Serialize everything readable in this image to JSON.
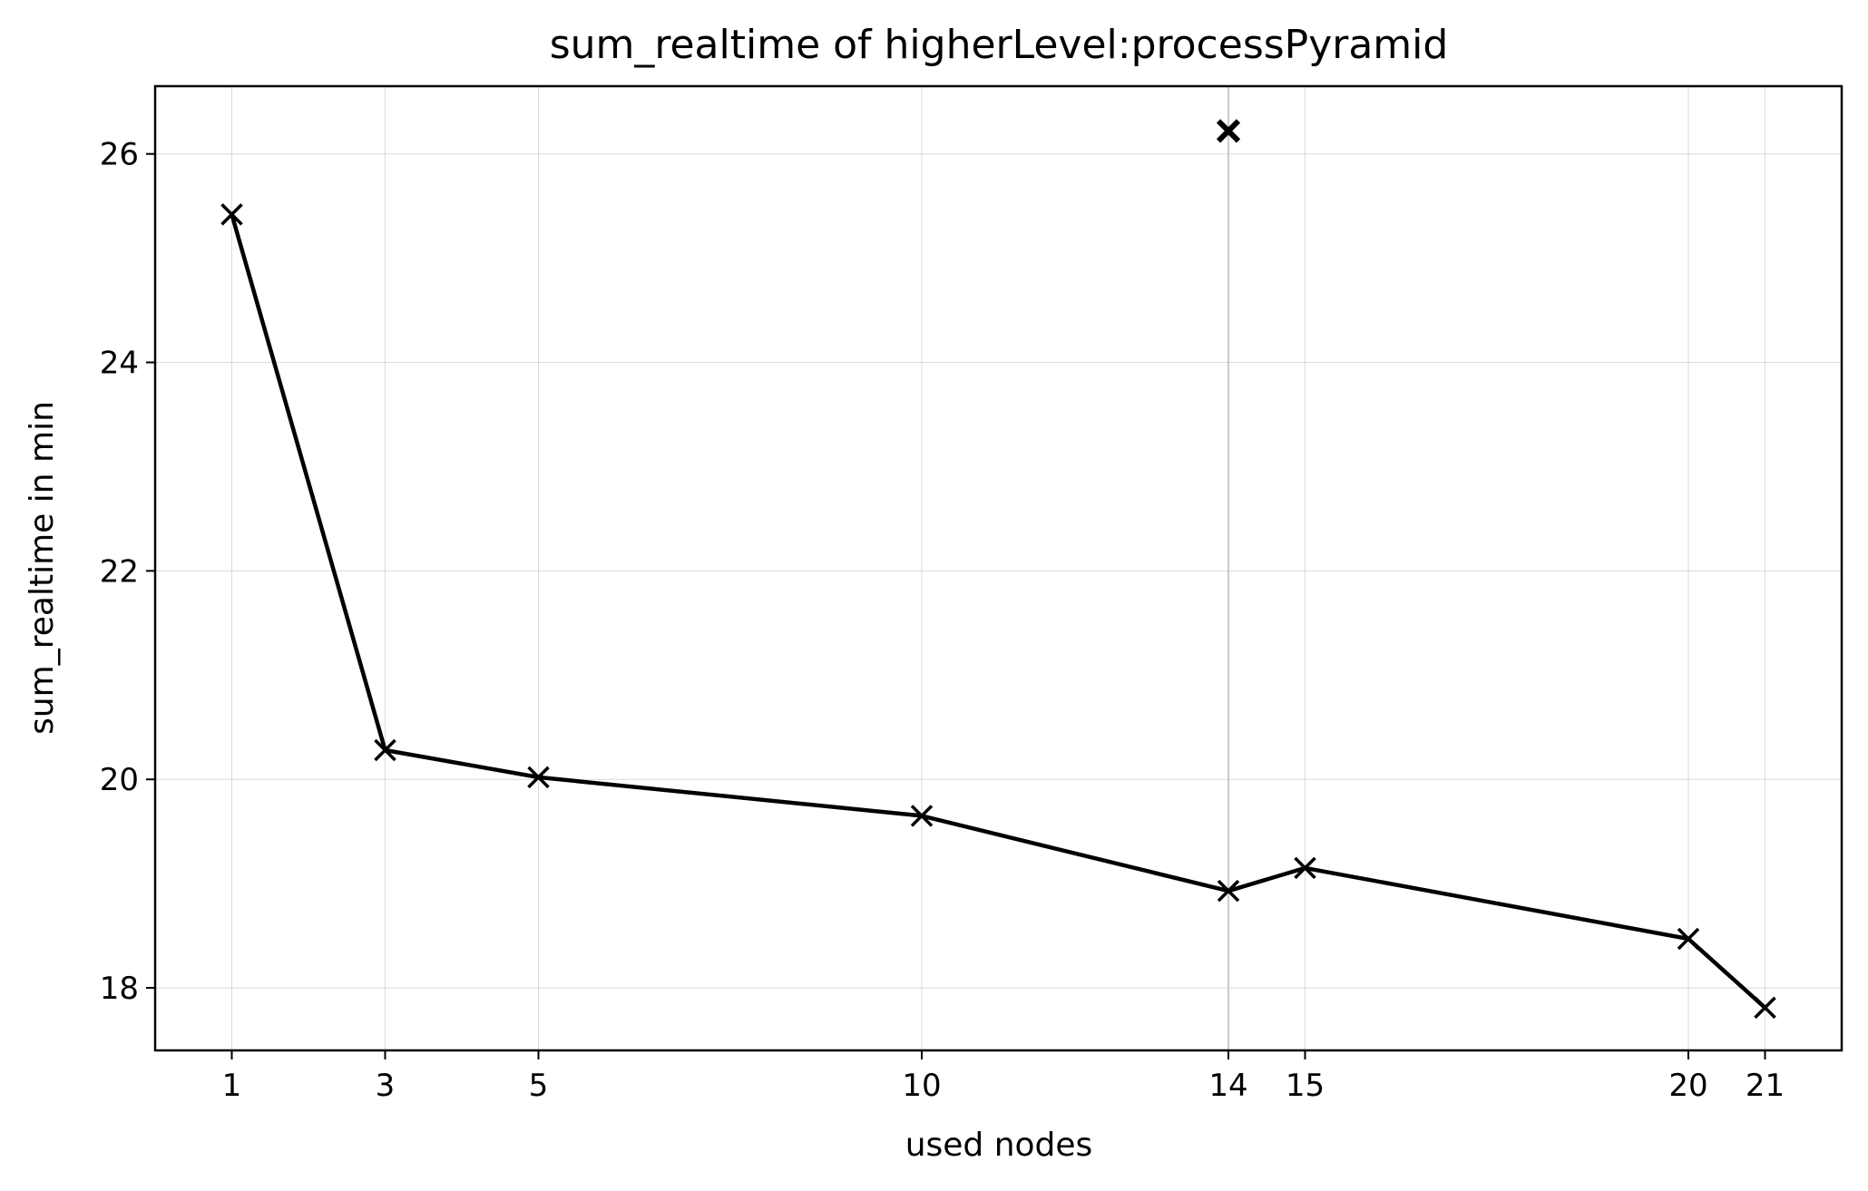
{
  "chart_data": {
    "type": "line",
    "title": "sum_realtime of higherLevel:processPyramid",
    "xlabel": "used nodes",
    "ylabel": "sum_realtime in min",
    "xlim": [
      0.0,
      22.0
    ],
    "ylim": [
      17.4,
      26.65
    ],
    "x_ticks": [
      1,
      3,
      5,
      10,
      14,
      15,
      20,
      21
    ],
    "x_tick_labels": [
      "1",
      "3",
      "5",
      "10",
      "14",
      "15",
      "20",
      "21"
    ],
    "y_ticks": [
      18,
      20,
      22,
      24,
      26
    ],
    "y_tick_labels": [
      "18",
      "20",
      "22",
      "24",
      "26"
    ],
    "grid": true,
    "highlight_vline_x": 14,
    "series": [
      {
        "marker": "x",
        "line_style": "solid",
        "color": "#000000",
        "x": [
          1,
          3,
          5,
          10,
          14,
          15,
          20,
          21
        ],
        "y": [
          25.42,
          20.28,
          20.02,
          19.65,
          18.93,
          19.15,
          18.47,
          17.81
        ]
      }
    ],
    "outliers": [
      {
        "x": 14,
        "y": 26.22,
        "marker": "x",
        "color": "#000000"
      }
    ]
  }
}
